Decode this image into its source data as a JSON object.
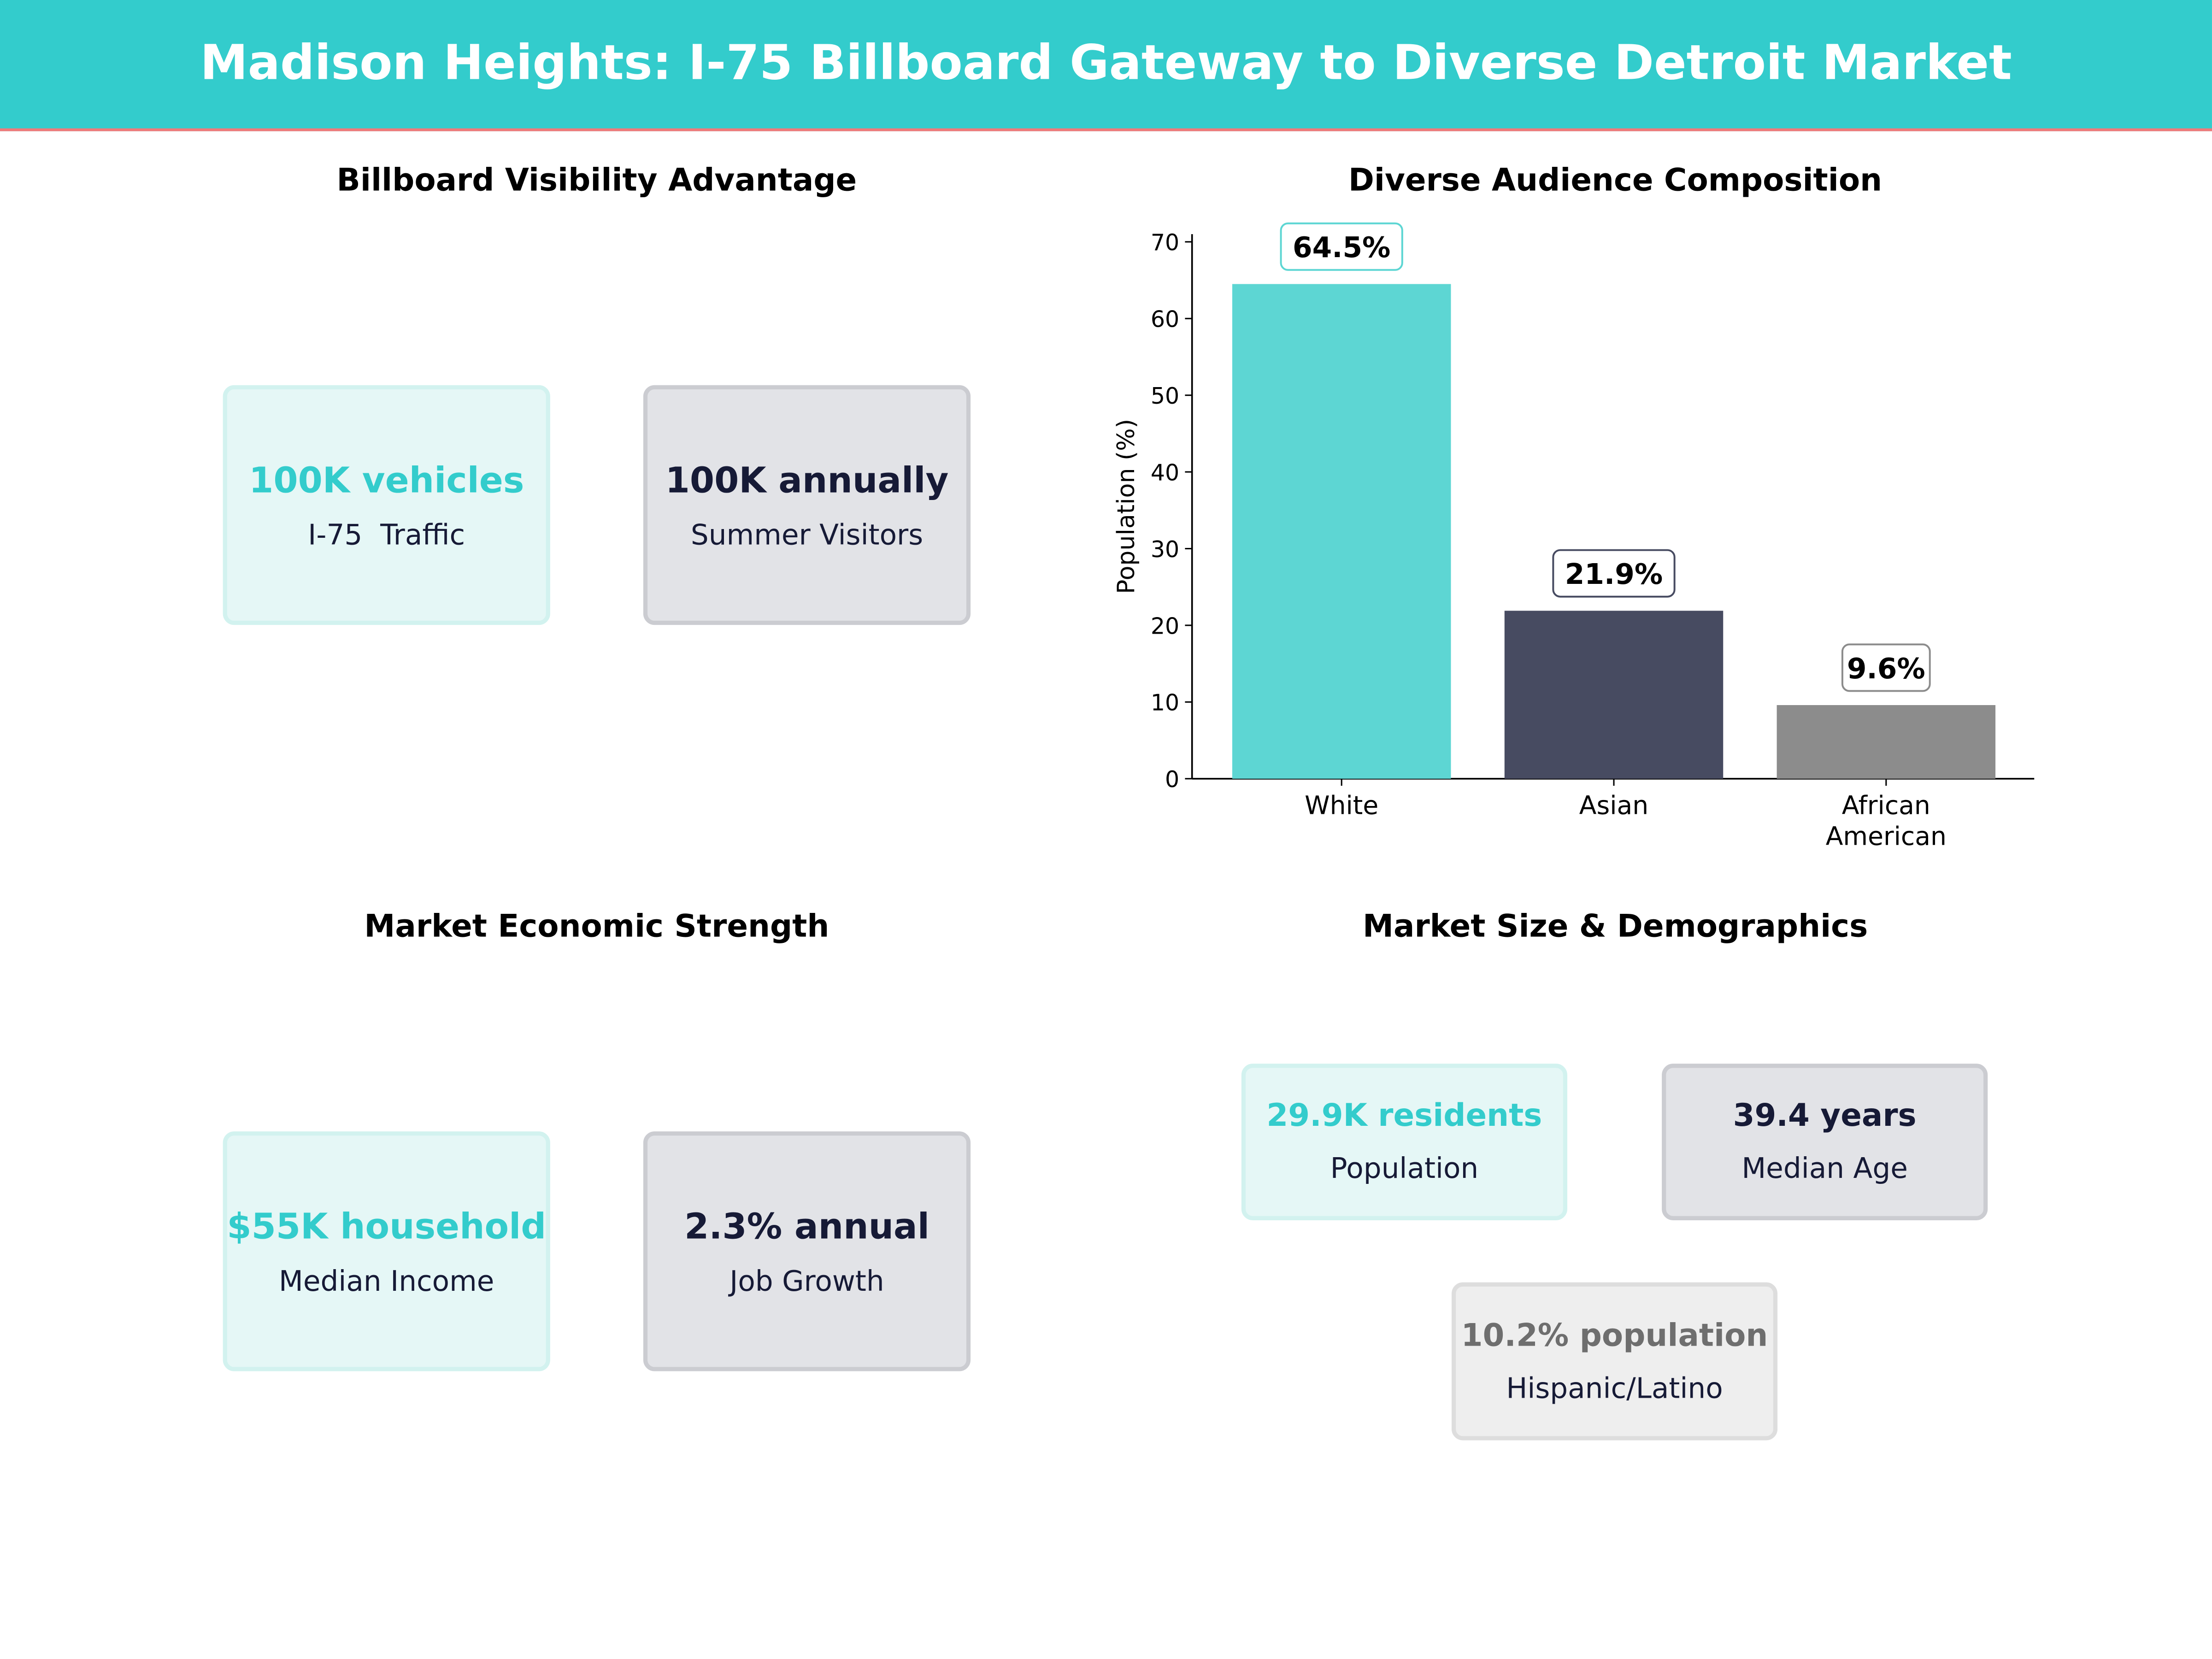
{
  "header": {
    "title": "Madison Heights: I-75 Billboard Gateway to Diverse Detroit Market",
    "color": "#33CCCC"
  },
  "panels": {
    "visibility": {
      "title": "Billboard Visibility Advantage",
      "cards": [
        {
          "value": "100K vehicles",
          "label": "I-75  Traffic"
        },
        {
          "value": "100K annually",
          "label": "Summer Visitors"
        }
      ]
    },
    "economic": {
      "title": "Market Economic Strength",
      "cards": [
        {
          "value": "$55K household",
          "label": "Median Income"
        },
        {
          "value": "2.3% annual",
          "label": "Job Growth"
        }
      ]
    },
    "demographics": {
      "title": "Market Size & Demographics",
      "cards": [
        {
          "value": "29.9K residents",
          "label": "Population"
        },
        {
          "value": "39.4 years",
          "label": "Median Age"
        },
        {
          "value": "10.2% population",
          "label": "Hispanic/Latino"
        }
      ]
    }
  },
  "chart_data": {
    "type": "bar",
    "title": "Diverse Audience Composition",
    "categories": [
      "White",
      "Asian",
      "African\nAmerican"
    ],
    "values": [
      64.5,
      21.9,
      9.6
    ],
    "data_labels": [
      "64.5%",
      "21.9%",
      "9.6%"
    ],
    "colors": [
      "#5DD6D3",
      "#474B61",
      "#8C8C8C"
    ],
    "xlabel": "",
    "ylabel": "Population (%)",
    "ylim": [
      0,
      71
    ],
    "yticks": [
      0,
      10,
      20,
      30,
      40,
      50,
      60,
      70
    ],
    "grid": false
  }
}
